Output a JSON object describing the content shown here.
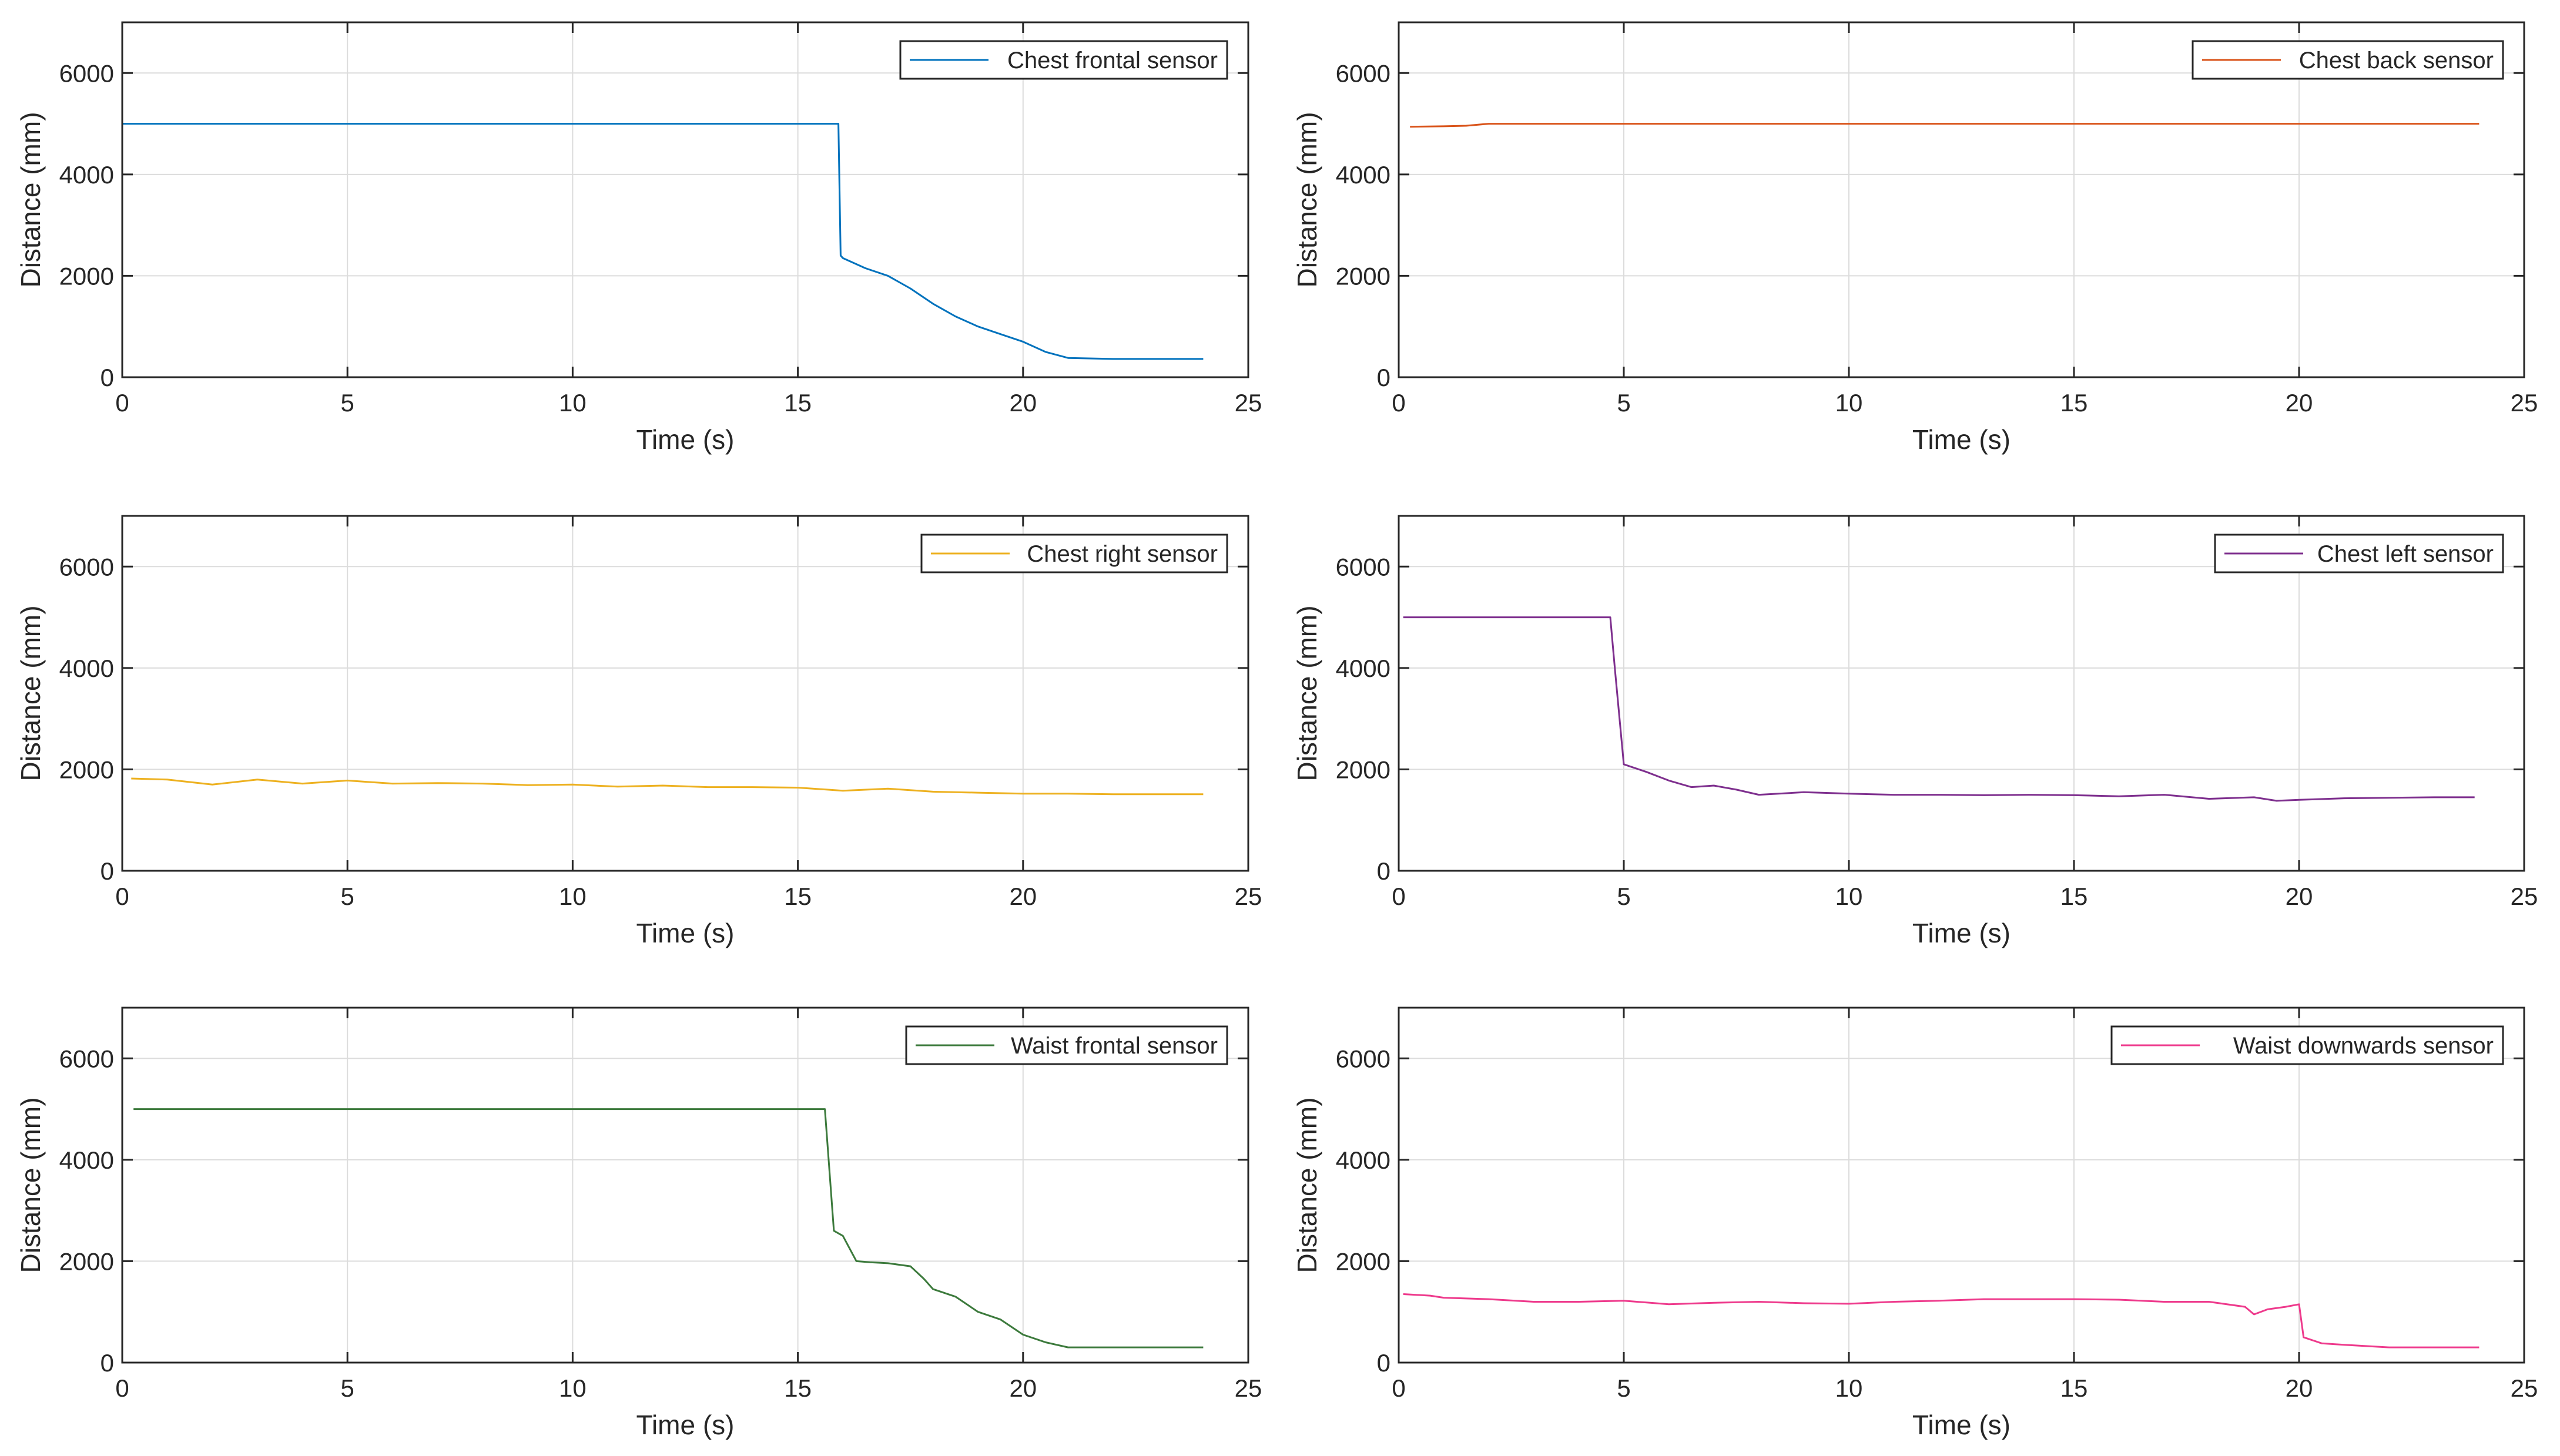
{
  "chart_data": [
    {
      "type": "line",
      "xlabel": "Time (s)",
      "ylabel": "Distance (mm)",
      "xlim": [
        0,
        25
      ],
      "ylim": [
        0,
        7000
      ],
      "xticks": [
        0,
        5,
        10,
        15,
        20,
        25
      ],
      "yticks": [
        0,
        2000,
        4000,
        6000
      ],
      "grid": true,
      "legend_position": "top-right",
      "series": [
        {
          "name": "Chest frontal sensor",
          "color": "#0072BD",
          "x": [
            0,
            15.9,
            15.95,
            16.0,
            16.5,
            17.0,
            17.5,
            18.0,
            18.5,
            19.0,
            19.5,
            20.0,
            20.5,
            21.0,
            22.0,
            23.0,
            24.0
          ],
          "y": [
            5000,
            5000,
            2400,
            2350,
            2150,
            2000,
            1750,
            1450,
            1200,
            1000,
            850,
            700,
            500,
            380,
            360,
            360,
            360
          ]
        }
      ]
    },
    {
      "type": "line",
      "xlabel": "Time (s)",
      "ylabel": "Distance (mm)",
      "xlim": [
        0,
        25
      ],
      "ylim": [
        0,
        7000
      ],
      "xticks": [
        0,
        5,
        10,
        15,
        20,
        25
      ],
      "yticks": [
        0,
        2000,
        4000,
        6000
      ],
      "grid": true,
      "legend_position": "top-right",
      "series": [
        {
          "name": "Chest back sensor",
          "color": "#D95319",
          "x": [
            0.25,
            1.0,
            1.5,
            2.0,
            5.0,
            10.0,
            15.0,
            20.0,
            24.0
          ],
          "y": [
            4940,
            4950,
            4960,
            5000,
            5000,
            5000,
            5000,
            5000,
            5000
          ]
        }
      ]
    },
    {
      "type": "line",
      "xlabel": "Time (s)",
      "ylabel": "Distance (mm)",
      "xlim": [
        0,
        25
      ],
      "ylim": [
        0,
        7000
      ],
      "xticks": [
        0,
        5,
        10,
        15,
        20,
        25
      ],
      "yticks": [
        0,
        2000,
        4000,
        6000
      ],
      "grid": true,
      "legend_position": "top-right",
      "series": [
        {
          "name": "Chest right sensor",
          "color": "#EDB120",
          "x": [
            0.2,
            1.0,
            2.0,
            3.0,
            4.0,
            5.0,
            6.0,
            7.0,
            8.0,
            9.0,
            10.0,
            11.0,
            12.0,
            13.0,
            14.0,
            15.0,
            16.0,
            17.0,
            18.0,
            19.0,
            20.0,
            21.0,
            22.0,
            23.0,
            24.0
          ],
          "y": [
            1820,
            1800,
            1700,
            1800,
            1720,
            1780,
            1720,
            1730,
            1720,
            1690,
            1700,
            1660,
            1680,
            1650,
            1650,
            1640,
            1580,
            1620,
            1560,
            1540,
            1520,
            1520,
            1510,
            1510,
            1510
          ]
        }
      ]
    },
    {
      "type": "line",
      "xlabel": "Time (s)",
      "ylabel": "Distance (mm)",
      "xlim": [
        0,
        25
      ],
      "ylim": [
        0,
        7000
      ],
      "xticks": [
        0,
        5,
        10,
        15,
        20,
        25
      ],
      "yticks": [
        0,
        2000,
        4000,
        6000
      ],
      "grid": true,
      "legend_position": "top-right",
      "series": [
        {
          "name": "Chest left sensor",
          "color": "#7E2F8E",
          "x": [
            0.1,
            4.7,
            4.8,
            5.0,
            5.5,
            6.0,
            6.5,
            7.0,
            7.5,
            8.0,
            9.0,
            10.0,
            11.0,
            12.0,
            13.0,
            14.0,
            15.0,
            16.0,
            17.0,
            18.0,
            19.0,
            19.5,
            20.0,
            21.0,
            22.0,
            23.0,
            23.9
          ],
          "y": [
            5000,
            5000,
            4000,
            2100,
            1950,
            1780,
            1650,
            1680,
            1600,
            1500,
            1550,
            1520,
            1500,
            1500,
            1490,
            1500,
            1490,
            1470,
            1500,
            1420,
            1450,
            1380,
            1400,
            1430,
            1440,
            1450,
            1450
          ]
        }
      ]
    },
    {
      "type": "line",
      "xlabel": "Time (s)",
      "ylabel": "Distance (mm)",
      "xlim": [
        0,
        25
      ],
      "ylim": [
        0,
        7000
      ],
      "xticks": [
        0,
        5,
        10,
        15,
        20,
        25
      ],
      "yticks": [
        0,
        2000,
        4000,
        6000
      ],
      "grid": true,
      "legend_position": "top-right",
      "series": [
        {
          "name": "Waist frontal sensor",
          "color": "#3C7A3C",
          "x": [
            0.25,
            15.6,
            15.8,
            16.0,
            16.3,
            16.6,
            17.0,
            17.5,
            17.8,
            18.0,
            18.5,
            19.0,
            19.5,
            20.0,
            20.5,
            21.0,
            22.0,
            23.0,
            24.0
          ],
          "y": [
            5000,
            5000,
            2600,
            2500,
            2000,
            1980,
            1960,
            1900,
            1650,
            1450,
            1300,
            1000,
            850,
            550,
            400,
            300,
            300,
            300,
            300
          ]
        }
      ]
    },
    {
      "type": "line",
      "xlabel": "Time (s)",
      "ylabel": "Distance (mm)",
      "xlim": [
        0,
        25
      ],
      "ylim": [
        0,
        7000
      ],
      "xticks": [
        0,
        5,
        10,
        15,
        20,
        25
      ],
      "yticks": [
        0,
        2000,
        4000,
        6000
      ],
      "grid": true,
      "legend_position": "top-right",
      "series": [
        {
          "name": "Waist downwards sensor",
          "color": "#EE3A8C",
          "x": [
            0.1,
            0.7,
            1.0,
            2.0,
            3.0,
            4.0,
            5.0,
            6.0,
            7.0,
            8.0,
            9.0,
            10.0,
            11.0,
            12.0,
            13.0,
            14.0,
            15.0,
            16.0,
            17.0,
            18.0,
            18.8,
            19.0,
            19.3,
            19.7,
            20.0,
            20.1,
            20.5,
            21.0,
            22.0,
            23.0,
            24.0
          ],
          "y": [
            1350,
            1320,
            1280,
            1250,
            1200,
            1200,
            1220,
            1150,
            1180,
            1200,
            1170,
            1160,
            1200,
            1220,
            1250,
            1250,
            1250,
            1240,
            1200,
            1200,
            1100,
            950,
            1050,
            1100,
            1150,
            500,
            380,
            350,
            300,
            300,
            300
          ]
        }
      ]
    }
  ]
}
